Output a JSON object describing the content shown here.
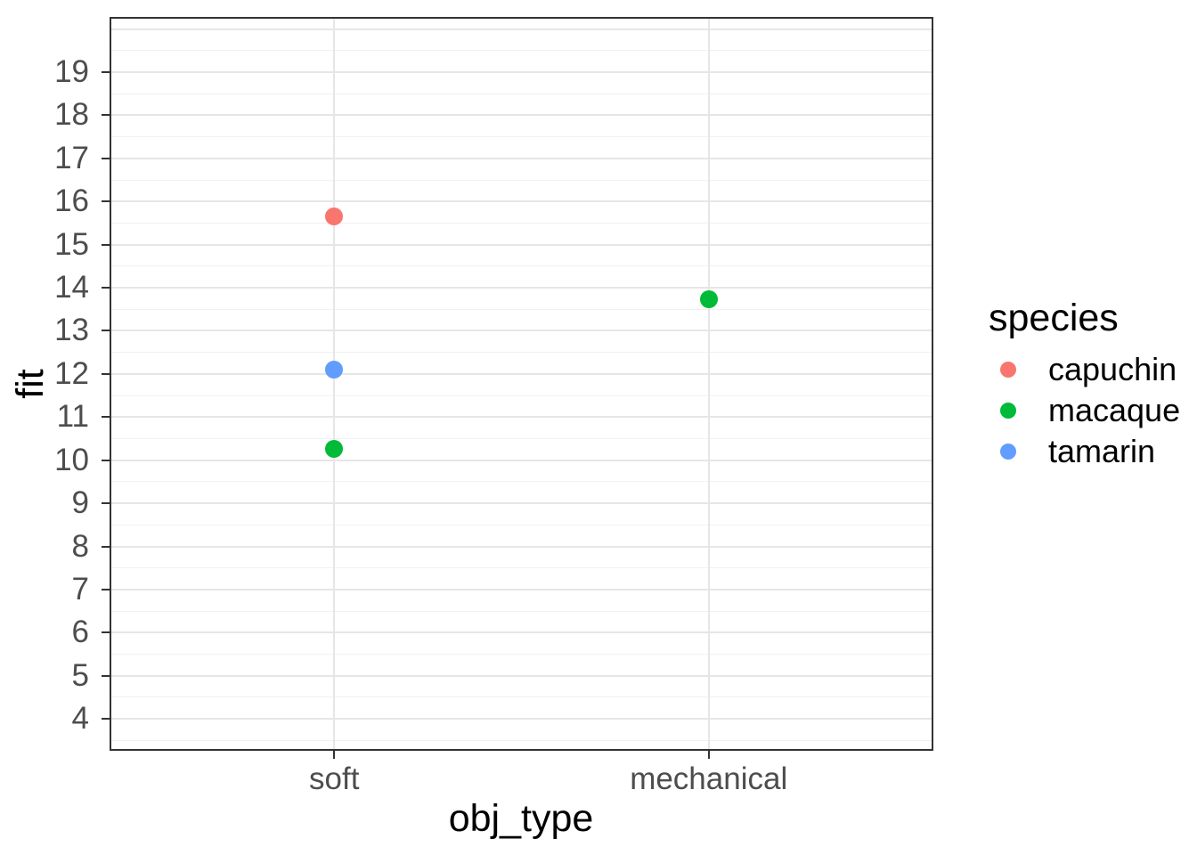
{
  "figure": {
    "background": "#ffffff",
    "panel_border_color": "#333333",
    "gridline_major_color": "#e6e6e6",
    "gridline_minor_color": "#f1f1f1",
    "tick_label_color": "#4d4d4d",
    "axis_title_color": "#000000"
  },
  "chart_data": {
    "type": "scatter",
    "title": "",
    "xlabel": "obj_type",
    "ylabel": "fit",
    "categories": [
      "soft",
      "mechanical"
    ],
    "y_axis": {
      "lim": [
        3.26,
        20.28
      ],
      "ticks": [
        4,
        5,
        6,
        7,
        8,
        9,
        10,
        11,
        12,
        13,
        14,
        15,
        16,
        17,
        18,
        19
      ],
      "major_gridlines": [
        4,
        5,
        6,
        7,
        8,
        9,
        10,
        11,
        12,
        13,
        14,
        15,
        16,
        17,
        18,
        19,
        20
      ],
      "minor_gridlines": [
        3.5,
        4.5,
        5.5,
        6.5,
        7.5,
        8.5,
        9.5,
        10.5,
        11.5,
        12.5,
        13.5,
        14.5,
        15.5,
        16.5,
        17.5,
        18.5,
        19.5
      ],
      "grid": true
    },
    "points": [
      {
        "obj_type": "soft",
        "species": "capuchin",
        "fit": 15.65
      },
      {
        "obj_type": "soft",
        "species": "tamarin",
        "fit": 12.1
      },
      {
        "obj_type": "soft",
        "species": "macaque",
        "fit": 10.26
      },
      {
        "obj_type": "mechanical",
        "species": "macaque",
        "fit": 13.73
      }
    ],
    "legend": {
      "title": "species",
      "position": "right",
      "items": [
        {
          "label": "capuchin",
          "color": "#F8766D"
        },
        {
          "label": "macaque",
          "color": "#00BA38"
        },
        {
          "label": "tamarin",
          "color": "#619CFF"
        }
      ]
    }
  }
}
